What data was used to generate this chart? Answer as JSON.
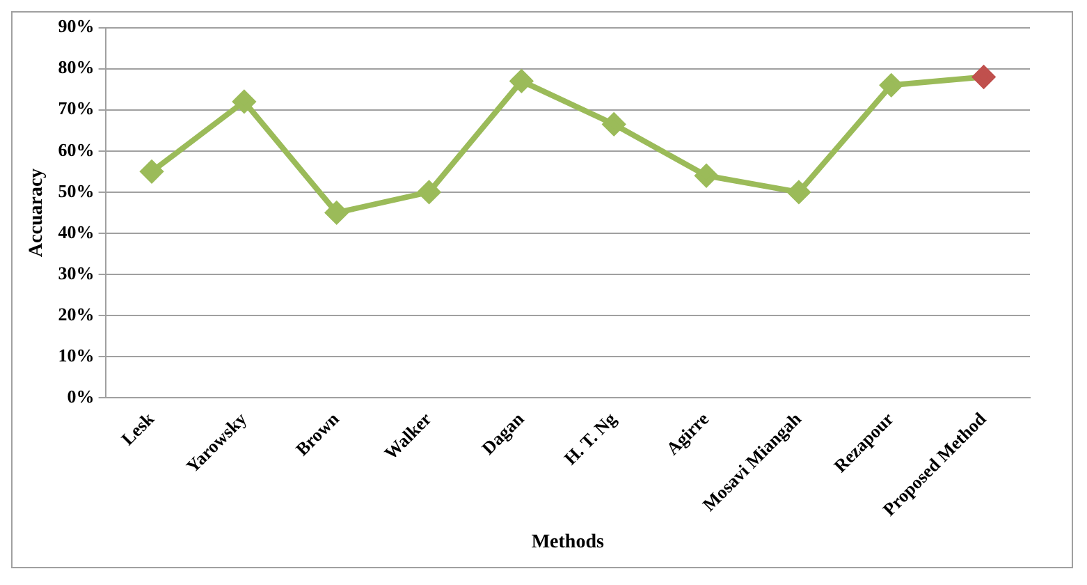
{
  "chart_data": {
    "type": "line",
    "xlabel": "Methods",
    "ylabel": "Accuaracy",
    "categories": [
      "Lesk",
      "Yarowsky",
      "Brown",
      "Walker",
      "Dagan",
      "H. T. Ng",
      "Agirre",
      "Mosavi Miangah",
      "Rezapour",
      "Proposed Method"
    ],
    "series": [
      {
        "color": "#9bbb59",
        "colors": [
          "#9bbb59",
          "#9bbb59",
          "#9bbb59",
          "#9bbb59",
          "#9bbb59",
          "#9bbb59",
          "#9bbb59",
          "#9bbb59",
          "#9bbb59",
          "#c0504d"
        ],
        "values": [
          55,
          72,
          45,
          50,
          77,
          66.5,
          54,
          50,
          76,
          78
        ]
      }
    ],
    "ylim": [
      0,
      90
    ],
    "yticks": [
      {
        "value": 0,
        "label": "0%"
      },
      {
        "value": 10,
        "label": "10%"
      },
      {
        "value": 20,
        "label": "20%"
      },
      {
        "value": 30,
        "label": "30%"
      },
      {
        "value": 40,
        "label": "40%"
      },
      {
        "value": 50,
        "label": "50%"
      },
      {
        "value": 60,
        "label": "60%"
      },
      {
        "value": 70,
        "label": "70%"
      },
      {
        "value": 80,
        "label": "80%"
      },
      {
        "value": 90,
        "label": "90%"
      }
    ],
    "grid": "y",
    "legend": false,
    "marker": "diamond",
    "line_style": "solid"
  }
}
